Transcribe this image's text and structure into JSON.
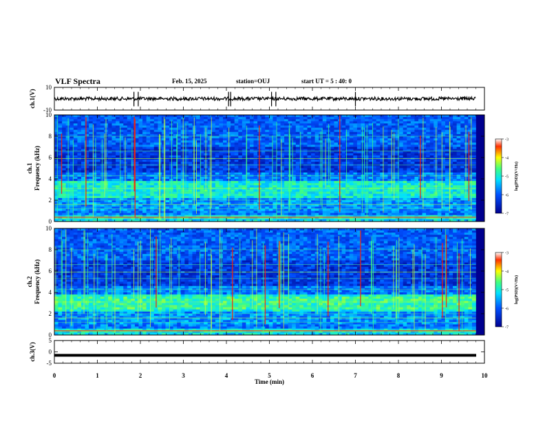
{
  "header": {
    "title": "VLF Spectra",
    "date": "Feb. 15, 2025",
    "station": "station=OUJ",
    "start": "start UT = 5 : 40: 0"
  },
  "chart_data": [
    {
      "type": "line",
      "panel": "ch1-waveform",
      "ylabel": "ch.1(V)",
      "ylim": [
        -10,
        10
      ],
      "yticks": [
        "10",
        "-10"
      ],
      "xlim": [
        0,
        10
      ],
      "baseline": 0,
      "spikes_min": [
        1.85,
        1.95,
        4.05,
        4.1,
        5.05,
        5.15,
        7.0
      ]
    },
    {
      "type": "heatmap",
      "panel": "ch1-spectrogram",
      "ylabel": "ch.1\nFrequency (kHz)",
      "ylabel_line1": "ch.1",
      "ylabel_line2": "Frequency (kHz)",
      "ylim": [
        0,
        10
      ],
      "yticks": [
        "0",
        "2",
        "4",
        "6",
        "8",
        "10"
      ],
      "xlim": [
        0,
        10
      ],
      "data_end_min": 9.8,
      "colorbar": {
        "label": "log(PSD)(V²/Hz)",
        "range": [
          -7,
          -3
        ],
        "ticks": [
          "-3",
          "-4",
          "-5",
          "-6",
          "-7"
        ]
      }
    },
    {
      "type": "heatmap",
      "panel": "ch2-spectrogram",
      "ylabel_line1": "ch.2",
      "ylabel_line2": "Frequency (kHz)",
      "ylim": [
        0,
        10
      ],
      "yticks": [
        "0",
        "2",
        "4",
        "6",
        "8",
        "10"
      ],
      "xlim": [
        0,
        10
      ],
      "data_end_min": 9.8,
      "colorbar": {
        "label": "log(PSD)(V²/Hz)",
        "range": [
          -7,
          -3
        ],
        "ticks": [
          "-3",
          "-4",
          "-5",
          "-6",
          "-7"
        ]
      }
    },
    {
      "type": "line",
      "panel": "ch3-waveform",
      "ylabel": "ch.3(V)",
      "ylim": [
        -5,
        5
      ],
      "yticks": [
        "5",
        "0",
        "-5"
      ],
      "xlim": [
        0,
        10
      ],
      "baseline": -1.5
    }
  ],
  "x_axis": {
    "label": "Time (min)",
    "ticks": [
      "0",
      "1",
      "2",
      "3",
      "4",
      "5",
      "6",
      "7",
      "8",
      "9",
      "10"
    ]
  },
  "colors": {
    "background_low": "#00008f",
    "band_mid": "#00c8ff",
    "band_high": "#40ff80",
    "hot": "#ff0000",
    "trace": "#000000"
  }
}
